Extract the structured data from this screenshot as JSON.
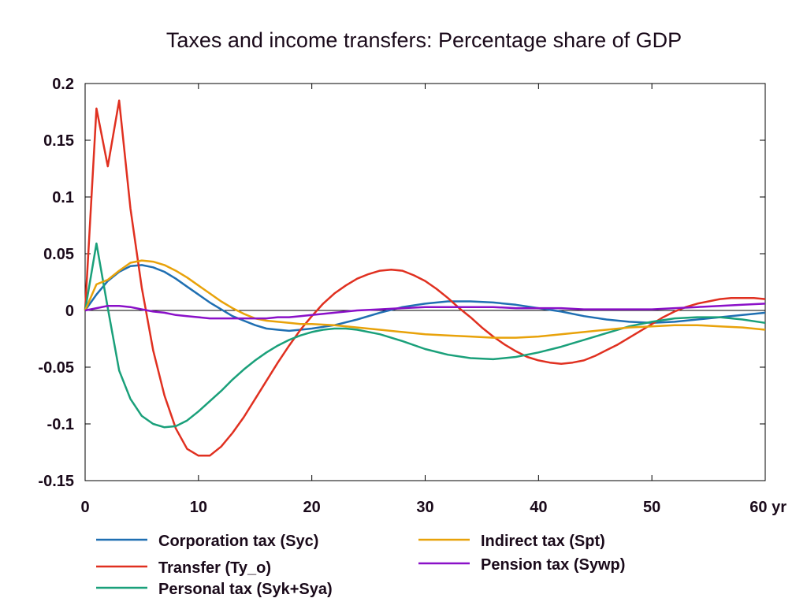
{
  "chart_data": {
    "type": "line",
    "title": "Taxes and income transfers: Percentage share of GDP",
    "xlim": [
      0,
      60
    ],
    "ylim": [
      -0.15,
      0.2
    ],
    "x_ticks": [
      0,
      10,
      20,
      30,
      40,
      50,
      60
    ],
    "x_tick_labels": [
      "0",
      "10",
      "20",
      "30",
      "40",
      "50",
      "60 yr"
    ],
    "y_ticks": [
      0.2,
      0.15,
      0.1,
      0.05,
      0,
      -0.05,
      -0.1,
      -0.15
    ],
    "y_tick_labels": [
      "0.2",
      "0.15",
      "0.1",
      "0.05",
      "0",
      "-0.05",
      "-0.1",
      "-0.15"
    ],
    "zero_line": true,
    "grid": false,
    "legend_position": "bottom",
    "series": [
      {
        "name": "Corporation tax (Syc)",
        "color": "#1f6fb2",
        "x": [
          0,
          1,
          2,
          3,
          4,
          5,
          6,
          7,
          8,
          9,
          10,
          11,
          12,
          13,
          14,
          15,
          16,
          17,
          18,
          19,
          20,
          22,
          24,
          26,
          28,
          30,
          32,
          34,
          36,
          38,
          40,
          42,
          44,
          46,
          48,
          50,
          52,
          54,
          56,
          58,
          60
        ],
        "y": [
          0,
          0.014,
          0.026,
          0.034,
          0.039,
          0.04,
          0.038,
          0.034,
          0.028,
          0.021,
          0.014,
          0.007,
          0.001,
          -0.005,
          -0.009,
          -0.013,
          -0.016,
          -0.017,
          -0.018,
          -0.017,
          -0.016,
          -0.013,
          -0.008,
          -0.002,
          0.003,
          0.006,
          0.008,
          0.008,
          0.007,
          0.005,
          0.002,
          -0.001,
          -0.005,
          -0.008,
          -0.01,
          -0.011,
          -0.01,
          -0.008,
          -0.006,
          -0.004,
          -0.002
        ]
      },
      {
        "name": "Transfer (Ty_o)",
        "color": "#e03020",
        "x": [
          0,
          1,
          2,
          3,
          4,
          5,
          6,
          7,
          8,
          9,
          10,
          11,
          12,
          13,
          14,
          15,
          16,
          17,
          18,
          19,
          20,
          21,
          22,
          23,
          24,
          25,
          26,
          27,
          28,
          29,
          30,
          31,
          32,
          33,
          34,
          35,
          36,
          37,
          38,
          39,
          40,
          41,
          42,
          43,
          44,
          45,
          46,
          47,
          48,
          49,
          50,
          51,
          52,
          53,
          54,
          55,
          56,
          57,
          58,
          59,
          60
        ],
        "y": [
          0,
          0.178,
          0.127,
          0.185,
          0.09,
          0.02,
          -0.035,
          -0.075,
          -0.104,
          -0.122,
          -0.128,
          -0.128,
          -0.12,
          -0.108,
          -0.094,
          -0.078,
          -0.062,
          -0.046,
          -0.031,
          -0.017,
          -0.005,
          0.006,
          0.015,
          0.022,
          0.028,
          0.032,
          0.035,
          0.036,
          0.035,
          0.031,
          0.026,
          0.019,
          0.011,
          0.002,
          -0.006,
          -0.015,
          -0.023,
          -0.03,
          -0.036,
          -0.041,
          -0.044,
          -0.046,
          -0.047,
          -0.046,
          -0.044,
          -0.04,
          -0.035,
          -0.03,
          -0.024,
          -0.018,
          -0.012,
          -0.006,
          -0.001,
          0.003,
          0.006,
          0.008,
          0.01,
          0.011,
          0.011,
          0.011,
          0.01
        ]
      },
      {
        "name": "Personal tax (Syk+Sya)",
        "color": "#1aa07a",
        "x": [
          0,
          1,
          2,
          3,
          4,
          5,
          6,
          7,
          8,
          9,
          10,
          11,
          12,
          13,
          14,
          15,
          16,
          17,
          18,
          19,
          20,
          21,
          22,
          23,
          24,
          26,
          28,
          30,
          32,
          34,
          36,
          38,
          40,
          42,
          44,
          46,
          48,
          50,
          52,
          54,
          56,
          58,
          60
        ],
        "y": [
          0,
          0.059,
          0.002,
          -0.053,
          -0.078,
          -0.093,
          -0.1,
          -0.103,
          -0.102,
          -0.097,
          -0.089,
          -0.08,
          -0.071,
          -0.061,
          -0.052,
          -0.044,
          -0.037,
          -0.031,
          -0.026,
          -0.022,
          -0.019,
          -0.017,
          -0.016,
          -0.016,
          -0.017,
          -0.021,
          -0.027,
          -0.034,
          -0.039,
          -0.042,
          -0.043,
          -0.041,
          -0.037,
          -0.032,
          -0.026,
          -0.02,
          -0.014,
          -0.01,
          -0.007,
          -0.006,
          -0.006,
          -0.008,
          -0.011
        ]
      },
      {
        "name": "Indirect tax (Spt)",
        "color": "#e8a20a",
        "x": [
          0,
          1,
          2,
          3,
          4,
          5,
          6,
          7,
          8,
          9,
          10,
          11,
          12,
          13,
          14,
          15,
          16,
          17,
          18,
          19,
          20,
          22,
          24,
          26,
          28,
          30,
          32,
          34,
          36,
          38,
          40,
          42,
          44,
          46,
          48,
          50,
          52,
          54,
          56,
          58,
          60
        ],
        "y": [
          0,
          0.023,
          0.027,
          0.035,
          0.042,
          0.044,
          0.043,
          0.04,
          0.035,
          0.029,
          0.022,
          0.015,
          0.008,
          0.002,
          -0.003,
          -0.007,
          -0.009,
          -0.01,
          -0.011,
          -0.012,
          -0.012,
          -0.013,
          -0.015,
          -0.017,
          -0.019,
          -0.021,
          -0.022,
          -0.023,
          -0.024,
          -0.024,
          -0.023,
          -0.021,
          -0.019,
          -0.017,
          -0.015,
          -0.014,
          -0.013,
          -0.013,
          -0.014,
          -0.015,
          -0.017
        ]
      },
      {
        "name": "Pension tax (Sywp)",
        "color": "#8a10c8",
        "x": [
          0,
          1,
          2,
          3,
          4,
          5,
          6,
          7,
          8,
          9,
          10,
          11,
          12,
          13,
          14,
          15,
          16,
          17,
          18,
          19,
          20,
          22,
          24,
          26,
          28,
          30,
          32,
          34,
          36,
          38,
          40,
          42,
          44,
          46,
          48,
          50,
          52,
          54,
          56,
          58,
          60
        ],
        "y": [
          0,
          0.002,
          0.004,
          0.004,
          0.003,
          0.001,
          -0.001,
          -0.002,
          -0.004,
          -0.005,
          -0.006,
          -0.007,
          -0.007,
          -0.007,
          -0.007,
          -0.007,
          -0.007,
          -0.006,
          -0.006,
          -0.005,
          -0.004,
          -0.002,
          0,
          0.001,
          0.002,
          0.003,
          0.003,
          0.003,
          0.003,
          0.002,
          0.002,
          0.002,
          0.001,
          0.001,
          0.001,
          0.001,
          0.002,
          0.003,
          0.004,
          0.005,
          0.006
        ]
      }
    ]
  }
}
